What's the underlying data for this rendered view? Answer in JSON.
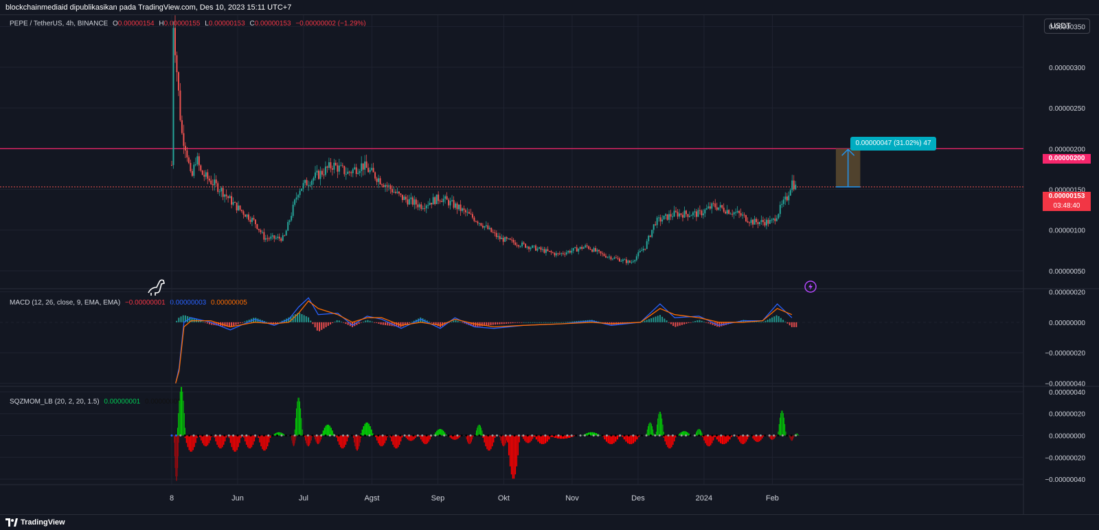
{
  "header": {
    "publisher_line": "blockchainmediaid dipublikasikan pada TradingView.com, Des 10, 2023 15:11 UTC+7"
  },
  "footer": {
    "brand": "TradingView"
  },
  "toolbar": {
    "currency": "USDT"
  },
  "symbol": {
    "name": "PEPE / TetherUS, 4h, BINANCE",
    "o_label": "O",
    "o": "0.00000154",
    "h_label": "H",
    "h": "0.00000155",
    "l_label": "L",
    "l": "0.00000153",
    "c_label": "C",
    "c": "0.00000153",
    "change": "−0.00000002 (−1.29%)"
  },
  "markers": {
    "resistance_price": "0.00000200",
    "current_price": "0.00000153",
    "countdown": "03:48:40",
    "measure_label": "0.00000047 (31.02%) 47"
  },
  "colors": {
    "background": "#131722",
    "grid": "#1f2330",
    "up": "#26a69a",
    "down": "#ef5350",
    "resistance": "#f7266c",
    "macd": "#2962ff",
    "signal": "#ff6d00",
    "sqz_up": "#00e600",
    "sqz_down": "#ff0000",
    "measure": "#00acc1"
  },
  "icons": {
    "dino": "dinosaur-icon",
    "lightning": "lightning-icon",
    "logo": "tradingview-logo-icon"
  },
  "macd": {
    "label": "MACD (12, 26, close, 9, EMA, EMA)",
    "hist": "−0.00000001",
    "macd": "0.00000003",
    "signal": "0.00000005"
  },
  "sqz": {
    "label": "SQZMOM_LB (20, 2, 20, 1.5)",
    "value1": "0.00000001",
    "value2": "0.00000000"
  },
  "chart_data": [
    {
      "type": "line",
      "name": "price",
      "x_tick_labels": [
        "8",
        "Jun",
        "Jul",
        "Agst",
        "Sep",
        "Okt",
        "Nov",
        "Des",
        "2024",
        "Feb"
      ],
      "y_tick_labels": [
        "0.00000350",
        "0.00000300",
        "0.00000250",
        "0.00000200",
        "0.00000150",
        "0.00000100",
        "0.00000050"
      ],
      "y_ticks": [
        3.5e-06,
        3e-06,
        2.5e-06,
        2e-06,
        1.5e-06,
        1e-06,
        5e-07
      ],
      "ylim": [
        2.8e-07,
        3.64e-06
      ],
      "points": [
        [
          0.0,
          1.8e-06
        ],
        [
          0.3,
          3.6e-06
        ],
        [
          1.0,
          3e-06
        ],
        [
          2.0,
          2.2e-06
        ],
        [
          3.0,
          2e-06
        ],
        [
          4.0,
          1.6e-06
        ],
        [
          5.0,
          1.9e-06
        ],
        [
          6.0,
          1.7e-06
        ],
        [
          8.0,
          1.6e-06
        ],
        [
          10.0,
          1.5e-06
        ],
        [
          13.0,
          1.3e-06
        ],
        [
          17.0,
          1.1e-06
        ],
        [
          19.0,
          9e-07
        ],
        [
          23.0,
          9e-07
        ],
        [
          26.0,
          1.5e-06
        ],
        [
          28.0,
          1.6e-06
        ],
        [
          33.0,
          1.8e-06
        ],
        [
          36.0,
          1.7e-06
        ],
        [
          39.0,
          1.8e-06
        ],
        [
          43.0,
          1.6e-06
        ],
        [
          47.0,
          1.4e-06
        ],
        [
          51.0,
          1.3e-06
        ],
        [
          55.0,
          1.4e-06
        ],
        [
          58.0,
          1.3e-06
        ],
        [
          63.0,
          1.1e-06
        ],
        [
          67.0,
          9e-07
        ],
        [
          73.0,
          8e-07
        ],
        [
          79.0,
          7e-07
        ],
        [
          85.0,
          8e-07
        ],
        [
          88.0,
          7e-07
        ],
        [
          94.0,
          6e-07
        ],
        [
          97.0,
          8e-07
        ],
        [
          99.0,
          1.1e-06
        ],
        [
          103.0,
          1.2e-06
        ],
        [
          108.0,
          1.2e-06
        ],
        [
          111.0,
          1.3e-06
        ],
        [
          116.0,
          1.2e-06
        ],
        [
          119.0,
          1.1e-06
        ],
        [
          123.0,
          1.1e-06
        ],
        [
          126.0,
          1.4e-06
        ],
        [
          127.0,
          1.6e-06
        ],
        [
          128.0,
          1.5e-06
        ]
      ],
      "levels": {
        "resistance": 2e-06,
        "current": 1.53e-06
      },
      "measure": {
        "from": 1.53e-06,
        "to": 2e-06,
        "x_start": 136,
        "x_end": 141
      },
      "x_tick_positions": [
        0,
        13.5,
        27,
        41,
        54.5,
        68,
        82,
        95.5,
        109,
        123
      ]
    },
    {
      "type": "line",
      "name": "MACD",
      "y_tick_labels": [
        "0.00000020",
        "0.00000000",
        "−0.00000020",
        "−0.00000040"
      ],
      "y_ticks": [
        2e-07,
        0,
        -2e-07,
        -4e-07
      ],
      "ylim": [
        -4.2e-07,
        2.2e-07
      ],
      "series": [
        {
          "name": "MACD",
          "values": [
            [
              0.8,
              -4e-07
            ],
            [
              1.5,
              -3e-07
            ],
            [
              2.5,
              0.0
            ],
            [
              4,
              3e-08
            ],
            [
              8,
              0.0
            ],
            [
              12,
              -5e-08
            ],
            [
              17,
              2e-08
            ],
            [
              21,
              -2e-08
            ],
            [
              24,
              2e-08
            ],
            [
              26,
              1e-07
            ],
            [
              28,
              1.6e-07
            ],
            [
              30,
              5e-08
            ],
            [
              34,
              6e-08
            ],
            [
              37,
              -2e-08
            ],
            [
              40,
              4e-08
            ],
            [
              43,
              2e-08
            ],
            [
              47,
              -4e-08
            ],
            [
              51,
              2e-08
            ],
            [
              55,
              -4e-08
            ],
            [
              58,
              3e-08
            ],
            [
              62,
              -3e-08
            ],
            [
              66,
              -4e-08
            ],
            [
              72,
              -2e-08
            ],
            [
              80,
              -1e-08
            ],
            [
              86,
              1e-08
            ],
            [
              90,
              -2e-08
            ],
            [
              96,
              0.0
            ],
            [
              100,
              1.2e-07
            ],
            [
              103,
              3e-08
            ],
            [
              108,
              4e-08
            ],
            [
              112,
              -2e-08
            ],
            [
              117,
              1e-08
            ],
            [
              121,
              1e-08
            ],
            [
              124,
              1.2e-07
            ],
            [
              127,
              3e-08
            ]
          ]
        },
        {
          "name": "Signal",
          "values": [
            [
              0.8,
              -4e-07
            ],
            [
              1.5,
              -3.2e-07
            ],
            [
              2.5,
              -3e-08
            ],
            [
              4,
              1e-08
            ],
            [
              8,
              1e-08
            ],
            [
              12,
              -3e-08
            ],
            [
              17,
              0.0
            ],
            [
              21,
              -1e-08
            ],
            [
              24,
              0.0
            ],
            [
              26,
              6e-08
            ],
            [
              28,
              1.4e-07
            ],
            [
              30,
              9e-08
            ],
            [
              34,
              5e-08
            ],
            [
              37,
              0.0
            ],
            [
              40,
              3e-08
            ],
            [
              43,
              3e-08
            ],
            [
              47,
              -2e-08
            ],
            [
              51,
              0.0
            ],
            [
              55,
              -2e-08
            ],
            [
              58,
              2e-08
            ],
            [
              62,
              -1e-08
            ],
            [
              66,
              -3e-08
            ],
            [
              72,
              -2e-08
            ],
            [
              80,
              -1e-08
            ],
            [
              86,
              0.0
            ],
            [
              90,
              -1e-08
            ],
            [
              96,
              0.0
            ],
            [
              100,
              9e-08
            ],
            [
              103,
              5e-08
            ],
            [
              108,
              3e-08
            ],
            [
              112,
              0.0
            ],
            [
              117,
              0.0
            ],
            [
              121,
              1e-08
            ],
            [
              124,
              9e-08
            ],
            [
              127,
              5e-08
            ]
          ]
        }
      ]
    },
    {
      "type": "bar",
      "name": "SQZMOM_LB",
      "y_tick_labels": [
        "0.00000040",
        "0.00000020",
        "0.00000000",
        "−0.00000020",
        "−0.00000040"
      ],
      "y_ticks": [
        4e-07,
        2e-07,
        0,
        -2e-07,
        -4e-07
      ],
      "ylim": [
        -4.5e-07,
        4.5e-07
      ],
      "values": [
        [
          1,
          -4.2e-07
        ],
        [
          2,
          4.5e-07
        ],
        [
          4,
          -1.5e-07
        ],
        [
          7,
          -1e-07
        ],
        [
          10,
          -1.2e-07
        ],
        [
          13,
          -1.5e-07
        ],
        [
          16,
          -1.2e-07
        ],
        [
          19,
          -1.4e-07
        ],
        [
          22,
          3e-08
        ],
        [
          25,
          -1e-07
        ],
        [
          26,
          3.5e-07
        ],
        [
          28,
          -1e-07
        ],
        [
          30,
          -8e-08
        ],
        [
          32,
          1e-07
        ],
        [
          35,
          -1.2e-07
        ],
        [
          38,
          -1.4e-07
        ],
        [
          40,
          1.2e-07
        ],
        [
          43,
          -1e-07
        ],
        [
          46,
          -1.2e-07
        ],
        [
          49,
          -5e-08
        ],
        [
          52,
          -8e-08
        ],
        [
          55,
          6e-08
        ],
        [
          58,
          -4e-08
        ],
        [
          61,
          -8e-08
        ],
        [
          63,
          1e-07
        ],
        [
          65,
          -1.4e-07
        ],
        [
          68,
          -1e-07
        ],
        [
          70,
          -4e-07
        ],
        [
          73,
          -7e-08
        ],
        [
          76,
          -8e-08
        ],
        [
          80,
          -3e-08
        ],
        [
          86,
          3e-08
        ],
        [
          90,
          -8e-08
        ],
        [
          94,
          -8e-08
        ],
        [
          98,
          1.2e-07
        ],
        [
          100,
          2.2e-07
        ],
        [
          102,
          -1.2e-07
        ],
        [
          105,
          4e-08
        ],
        [
          108,
          6e-08
        ],
        [
          110,
          -1e-07
        ],
        [
          113,
          -8e-08
        ],
        [
          117,
          -8e-08
        ],
        [
          120,
          -6e-08
        ],
        [
          123,
          -4e-08
        ],
        [
          125,
          2.3e-07
        ],
        [
          127,
          -5e-08
        ],
        [
          128,
          2e-08
        ]
      ]
    }
  ]
}
